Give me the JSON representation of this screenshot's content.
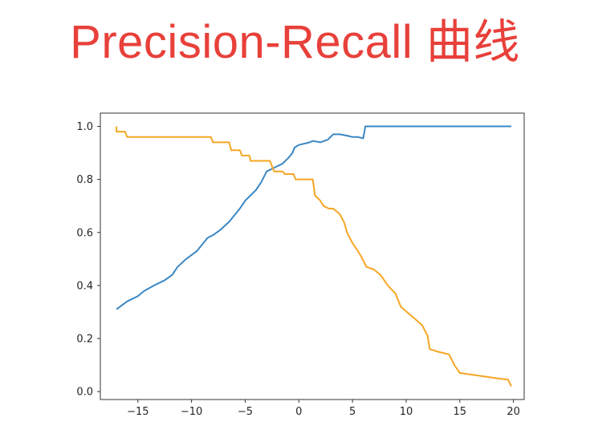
{
  "header": {
    "title": "Precision-Recall 曲线"
  },
  "chart_data": {
    "type": "line",
    "title": "",
    "xlabel": "",
    "ylabel": "",
    "xlim": [
      -18.5,
      21
    ],
    "ylim": [
      -0.03,
      1.05
    ],
    "xticks": [
      -15,
      -10,
      -5,
      0,
      5,
      10,
      15,
      20
    ],
    "xtick_labels": [
      "−15",
      "−10",
      "−5",
      "0",
      "5",
      "10",
      "15",
      "20"
    ],
    "yticks": [
      0.0,
      0.2,
      0.4,
      0.6,
      0.8,
      1.0
    ],
    "ytick_labels": [
      "0.0",
      "0.2",
      "0.4",
      "0.6",
      "0.8",
      "1.0"
    ],
    "grid": false,
    "series": [
      {
        "color": "#3a87c4",
        "x": [
          -17.0,
          -16.0,
          -15.0,
          -14.4,
          -13.5,
          -12.5,
          -11.8,
          -11.3,
          -10.5,
          -9.5,
          -8.5,
          -8.0,
          -7.3,
          -6.5,
          -5.5,
          -5.0,
          -4.5,
          -4.0,
          -3.5,
          -3.0,
          -2.5,
          -2.0,
          -1.5,
          -1.0,
          -0.6,
          -0.4,
          0.0,
          1.0,
          1.3,
          2.0,
          2.7,
          3.2,
          3.8,
          4.5,
          5.0,
          5.5,
          6.0,
          6.2,
          10.0,
          15.0,
          19.8
        ],
        "y": [
          0.31,
          0.34,
          0.36,
          0.38,
          0.4,
          0.42,
          0.44,
          0.47,
          0.5,
          0.53,
          0.58,
          0.59,
          0.61,
          0.64,
          0.69,
          0.72,
          0.74,
          0.76,
          0.79,
          0.83,
          0.84,
          0.85,
          0.86,
          0.88,
          0.9,
          0.92,
          0.93,
          0.94,
          0.945,
          0.94,
          0.95,
          0.97,
          0.97,
          0.965,
          0.96,
          0.96,
          0.955,
          1.0,
          1.0,
          1.0,
          1.0
        ]
      },
      {
        "color": "#f5a623",
        "x": [
          -17.0,
          -17.0,
          -16.2,
          -16.0,
          -10.0,
          -8.2,
          -8.0,
          -6.5,
          -6.3,
          -5.5,
          -5.3,
          -4.6,
          -4.5,
          -2.7,
          -2.5,
          -2.3,
          -1.5,
          -1.3,
          -0.5,
          -0.3,
          1.3,
          1.5,
          2.0,
          2.3,
          2.8,
          3.2,
          3.8,
          4.2,
          4.5,
          5.0,
          5.5,
          5.8,
          6.3,
          7.0,
          7.6,
          8.3,
          9.0,
          9.5,
          11.5,
          12.0,
          12.2,
          13.0,
          14.0,
          14.5,
          15.0,
          18.5,
          19.5,
          19.8
        ],
        "y": [
          1.0,
          0.98,
          0.98,
          0.96,
          0.96,
          0.96,
          0.94,
          0.94,
          0.91,
          0.91,
          0.89,
          0.89,
          0.87,
          0.87,
          0.85,
          0.83,
          0.83,
          0.82,
          0.82,
          0.8,
          0.8,
          0.74,
          0.72,
          0.7,
          0.69,
          0.69,
          0.67,
          0.64,
          0.6,
          0.56,
          0.53,
          0.51,
          0.47,
          0.46,
          0.44,
          0.4,
          0.37,
          0.32,
          0.25,
          0.21,
          0.16,
          0.15,
          0.14,
          0.1,
          0.07,
          0.05,
          0.045,
          0.02
        ]
      }
    ]
  }
}
